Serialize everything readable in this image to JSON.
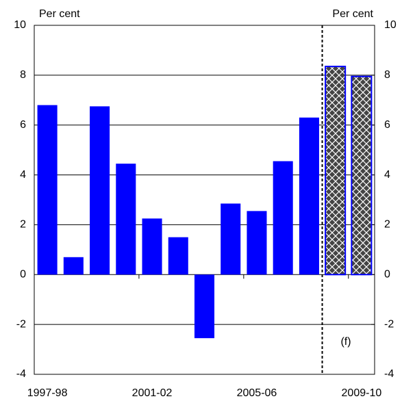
{
  "chart_data": {
    "type": "bar",
    "ylabel": "Per cent",
    "y2label": "Per cent",
    "annotation": "(f)",
    "categories": [
      "1997-98",
      null,
      null,
      null,
      "2001-02",
      null,
      null,
      null,
      "2005-06",
      null,
      null,
      null,
      "2009-10"
    ],
    "values": [
      6.8,
      0.7,
      6.75,
      4.45,
      2.25,
      1.5,
      -2.55,
      2.85,
      2.55,
      4.55,
      6.3,
      8.35,
      7.95
    ],
    "hatched": [
      false,
      false,
      false,
      false,
      false,
      false,
      false,
      false,
      false,
      false,
      false,
      true,
      true
    ],
    "color": "#0000ff",
    "ylim": [
      -4,
      10
    ],
    "yticks": [
      -4,
      -2,
      0,
      2,
      4,
      6,
      8,
      10
    ],
    "y2lim": [
      -4,
      10
    ],
    "y2ticks": [
      -4,
      -2,
      0,
      2,
      4,
      6,
      8,
      10
    ],
    "grid": true
  }
}
